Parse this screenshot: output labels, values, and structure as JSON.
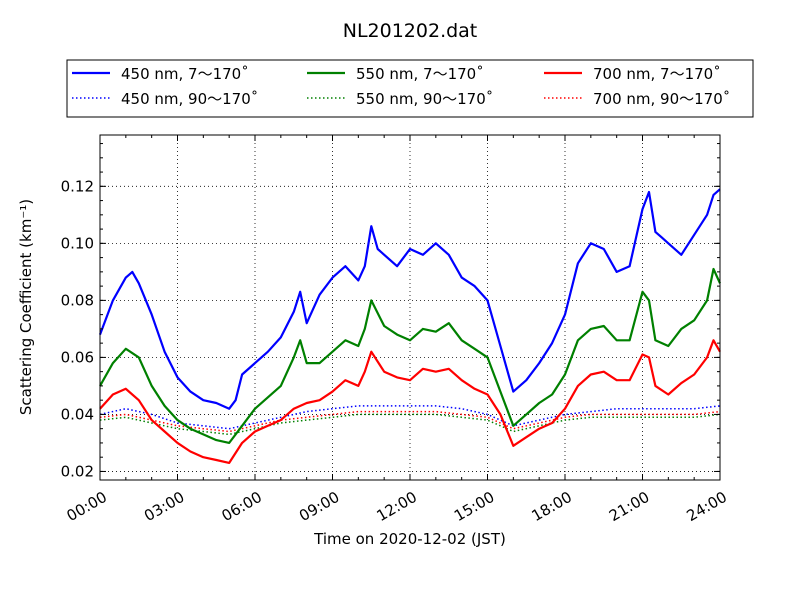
{
  "chart_data": {
    "type": "line",
    "title": "NL201202.dat",
    "xlabel": "Time on 2020-12-02 (JST)",
    "ylabel": "Scattering Coefficient (km⁻¹)",
    "ylim": [
      0.017,
      0.138
    ],
    "xlim": [
      "00:00",
      "24:00"
    ],
    "x_ticks": [
      "00:00",
      "03:00",
      "06:00",
      "09:00",
      "12:00",
      "15:00",
      "18:00",
      "21:00",
      "24:00"
    ],
    "y_ticks": [
      "0.02",
      "0.04",
      "0.06",
      "0.08",
      "0.10",
      "0.12"
    ],
    "grid": true,
    "legend_placement": "top",
    "series": [
      {
        "name": "450 nm, 7～170˚",
        "color": "#0000ff",
        "style": "solid",
        "x": [
          "00:00",
          "00:30",
          "01:00",
          "01:15",
          "01:30",
          "02:00",
          "02:30",
          "03:00",
          "03:30",
          "04:00",
          "04:30",
          "05:00",
          "05:15",
          "05:30",
          "06:00",
          "06:30",
          "07:00",
          "07:30",
          "07:45",
          "08:00",
          "08:30",
          "09:00",
          "09:30",
          "10:00",
          "10:15",
          "10:30",
          "10:45",
          "11:00",
          "11:30",
          "12:00",
          "12:30",
          "13:00",
          "13:30",
          "14:00",
          "14:30",
          "15:00",
          "15:30",
          "16:00",
          "16:30",
          "17:00",
          "17:30",
          "18:00",
          "18:30",
          "19:00",
          "19:30",
          "20:00",
          "20:30",
          "21:00",
          "21:15",
          "21:30",
          "21:45",
          "22:00",
          "22:30",
          "23:00",
          "23:30",
          "23:45",
          "24:00"
        ],
        "values": [
          0.068,
          0.08,
          0.088,
          0.09,
          0.086,
          0.075,
          0.062,
          0.053,
          0.048,
          0.045,
          0.044,
          0.042,
          0.045,
          0.054,
          0.058,
          0.062,
          0.067,
          0.076,
          0.083,
          0.072,
          0.082,
          0.088,
          0.092,
          0.087,
          0.092,
          0.106,
          0.098,
          0.096,
          0.092,
          0.098,
          0.096,
          0.1,
          0.096,
          0.088,
          0.085,
          0.08,
          0.064,
          0.048,
          0.052,
          0.058,
          0.065,
          0.075,
          0.093,
          0.1,
          0.098,
          0.09,
          0.092,
          0.112,
          0.118,
          0.104,
          0.102,
          0.1,
          0.096,
          0.103,
          0.11,
          0.117,
          0.119
        ]
      },
      {
        "name": "550 nm, 7～170˚",
        "color": "#008000",
        "style": "solid",
        "x": [
          "00:00",
          "00:30",
          "01:00",
          "01:30",
          "02:00",
          "02:30",
          "03:00",
          "03:30",
          "04:00",
          "04:30",
          "05:00",
          "05:30",
          "06:00",
          "06:30",
          "07:00",
          "07:30",
          "07:45",
          "08:00",
          "08:30",
          "09:00",
          "09:30",
          "10:00",
          "10:15",
          "10:30",
          "11:00",
          "11:30",
          "12:00",
          "12:30",
          "13:00",
          "13:30",
          "14:00",
          "14:30",
          "15:00",
          "15:30",
          "16:00",
          "16:30",
          "17:00",
          "17:30",
          "18:00",
          "18:30",
          "19:00",
          "19:30",
          "20:00",
          "20:30",
          "21:00",
          "21:15",
          "21:30",
          "22:00",
          "22:30",
          "23:00",
          "23:30",
          "23:45",
          "24:00"
        ],
        "values": [
          0.05,
          0.058,
          0.063,
          0.06,
          0.05,
          0.043,
          0.038,
          0.035,
          0.033,
          0.031,
          0.03,
          0.036,
          0.042,
          0.046,
          0.05,
          0.06,
          0.066,
          0.058,
          0.058,
          0.062,
          0.066,
          0.064,
          0.07,
          0.08,
          0.071,
          0.068,
          0.066,
          0.07,
          0.069,
          0.072,
          0.066,
          0.063,
          0.06,
          0.048,
          0.036,
          0.04,
          0.044,
          0.047,
          0.054,
          0.066,
          0.07,
          0.071,
          0.066,
          0.066,
          0.083,
          0.08,
          0.066,
          0.064,
          0.07,
          0.073,
          0.08,
          0.091,
          0.086
        ]
      },
      {
        "name": "700 nm, 7～170˚",
        "color": "#ff0000",
        "style": "solid",
        "x": [
          "00:00",
          "00:30",
          "01:00",
          "01:30",
          "02:00",
          "02:30",
          "03:00",
          "03:30",
          "04:00",
          "04:30",
          "05:00",
          "05:30",
          "06:00",
          "06:30",
          "07:00",
          "07:30",
          "08:00",
          "08:30",
          "09:00",
          "09:30",
          "10:00",
          "10:15",
          "10:30",
          "11:00",
          "11:30",
          "12:00",
          "12:30",
          "13:00",
          "13:30",
          "14:00",
          "14:30",
          "15:00",
          "15:30",
          "16:00",
          "16:30",
          "17:00",
          "17:30",
          "18:00",
          "18:30",
          "19:00",
          "19:30",
          "20:00",
          "20:30",
          "21:00",
          "21:15",
          "21:30",
          "22:00",
          "22:30",
          "23:00",
          "23:30",
          "23:45",
          "24:00"
        ],
        "values": [
          0.042,
          0.047,
          0.049,
          0.045,
          0.038,
          0.034,
          0.03,
          0.027,
          0.025,
          0.024,
          0.023,
          0.03,
          0.034,
          0.036,
          0.038,
          0.042,
          0.044,
          0.045,
          0.048,
          0.052,
          0.05,
          0.055,
          0.062,
          0.055,
          0.053,
          0.052,
          0.056,
          0.055,
          0.056,
          0.052,
          0.049,
          0.047,
          0.04,
          0.029,
          0.032,
          0.035,
          0.037,
          0.042,
          0.05,
          0.054,
          0.055,
          0.052,
          0.052,
          0.061,
          0.06,
          0.05,
          0.047,
          0.051,
          0.054,
          0.06,
          0.066,
          0.062
        ]
      },
      {
        "name": "450 nm, 90～170˚",
        "color": "#0000ff",
        "style": "dotted",
        "x": [
          "00:00",
          "01:00",
          "02:00",
          "03:00",
          "04:00",
          "05:00",
          "06:00",
          "07:00",
          "08:00",
          "09:00",
          "10:00",
          "11:00",
          "12:00",
          "13:00",
          "14:00",
          "15:00",
          "16:00",
          "17:00",
          "18:00",
          "19:00",
          "20:00",
          "21:00",
          "22:00",
          "23:00",
          "24:00"
        ],
        "values": [
          0.04,
          0.042,
          0.04,
          0.037,
          0.036,
          0.035,
          0.037,
          0.039,
          0.041,
          0.042,
          0.043,
          0.043,
          0.043,
          0.043,
          0.042,
          0.04,
          0.036,
          0.038,
          0.04,
          0.041,
          0.042,
          0.042,
          0.042,
          0.042,
          0.043
        ]
      },
      {
        "name": "550 nm, 90～170˚",
        "color": "#008000",
        "style": "dotted",
        "x": [
          "00:00",
          "01:00",
          "02:00",
          "03:00",
          "04:00",
          "05:00",
          "06:00",
          "07:00",
          "08:00",
          "09:00",
          "10:00",
          "11:00",
          "12:00",
          "13:00",
          "14:00",
          "15:00",
          "16:00",
          "17:00",
          "18:00",
          "19:00",
          "20:00",
          "21:00",
          "22:00",
          "23:00",
          "24:00"
        ],
        "values": [
          0.038,
          0.039,
          0.037,
          0.035,
          0.034,
          0.033,
          0.035,
          0.037,
          0.038,
          0.039,
          0.04,
          0.04,
          0.04,
          0.04,
          0.039,
          0.038,
          0.034,
          0.036,
          0.038,
          0.039,
          0.039,
          0.039,
          0.039,
          0.039,
          0.04
        ]
      },
      {
        "name": "700 nm, 90～170˚",
        "color": "#ff0000",
        "style": "dotted",
        "x": [
          "00:00",
          "01:00",
          "02:00",
          "03:00",
          "04:00",
          "05:00",
          "06:00",
          "07:00",
          "08:00",
          "09:00",
          "10:00",
          "11:00",
          "12:00",
          "13:00",
          "14:00",
          "15:00",
          "16:00",
          "17:00",
          "18:00",
          "19:00",
          "20:00",
          "21:00",
          "22:00",
          "23:00",
          "24:00"
        ],
        "values": [
          0.039,
          0.04,
          0.038,
          0.036,
          0.035,
          0.034,
          0.036,
          0.038,
          0.039,
          0.04,
          0.041,
          0.041,
          0.041,
          0.041,
          0.04,
          0.039,
          0.035,
          0.037,
          0.039,
          0.04,
          0.04,
          0.04,
          0.04,
          0.04,
          0.041
        ]
      }
    ]
  }
}
